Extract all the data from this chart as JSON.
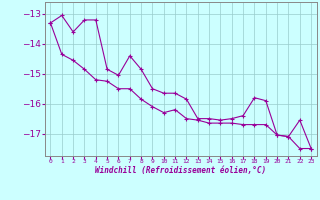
{
  "xlabel": "Windchill (Refroidissement éolien,°C)",
  "x": [
    0,
    1,
    2,
    3,
    4,
    5,
    6,
    7,
    8,
    9,
    10,
    11,
    12,
    13,
    14,
    15,
    16,
    17,
    18,
    19,
    20,
    21,
    22,
    23
  ],
  "line1": [
    -13.3,
    -13.05,
    -13.6,
    -13.2,
    -13.2,
    -14.85,
    -15.05,
    -14.4,
    -14.85,
    -15.5,
    -15.65,
    -15.65,
    -15.85,
    -16.5,
    -16.5,
    -16.55,
    -16.5,
    -16.4,
    -15.8,
    -15.9,
    -17.05,
    -17.1,
    -16.55,
    -17.5
  ],
  "line2": [
    -13.3,
    -14.35,
    -14.55,
    -14.85,
    -15.2,
    -15.25,
    -15.5,
    -15.5,
    -15.85,
    -16.1,
    -16.3,
    -16.2,
    -16.5,
    -16.55,
    -16.65,
    -16.65,
    -16.65,
    -16.7,
    -16.7,
    -16.7,
    -17.05,
    -17.1,
    -17.5,
    -17.5
  ],
  "line_color": "#990099",
  "bg_color": "#ccffff",
  "grid_color": "#99cccc",
  "ylim": [
    -17.75,
    -12.6
  ],
  "yticks": [
    -13,
    -14,
    -15,
    -16,
    -17
  ],
  "markersize": 2.5,
  "linewidth": 0.8
}
